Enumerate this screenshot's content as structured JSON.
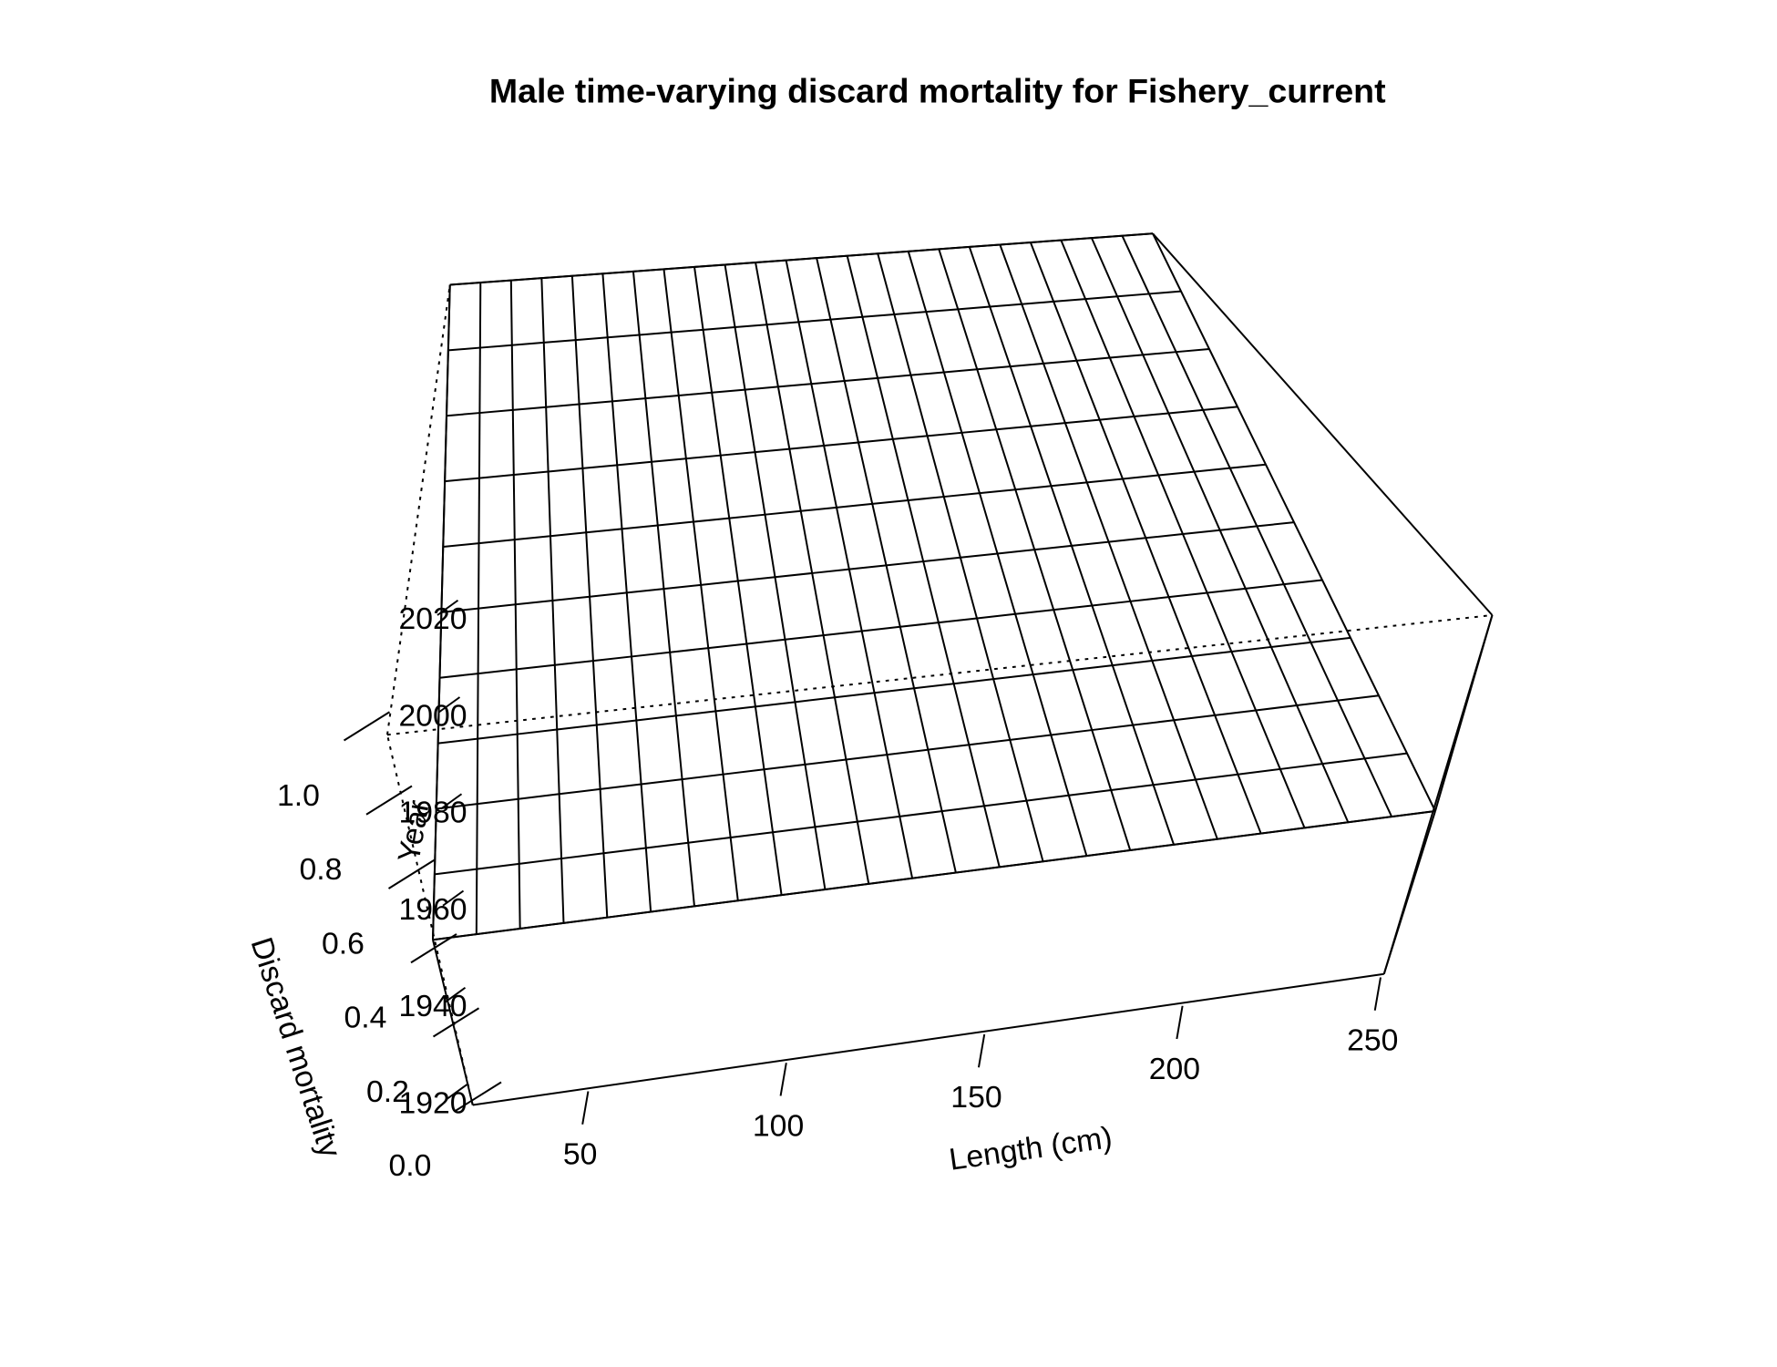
{
  "chart_data": {
    "type": "surface",
    "title": "Male time-varying discard mortality for Fishery_current",
    "xlabel": "Length (cm)",
    "ylabel": "Year",
    "zlabel": "Discard mortality",
    "x": [
      20,
      30,
      40,
      50,
      60,
      70,
      80,
      90,
      100,
      110,
      120,
      130,
      140,
      150,
      160,
      170,
      180,
      190,
      200,
      210,
      220,
      230,
      240,
      250
    ],
    "xlim": [
      20,
      250
    ],
    "xticks": [
      50,
      100,
      150,
      200,
      250
    ],
    "ylim": [
      1920,
      2020
    ],
    "yticks": [
      1920,
      1940,
      1960,
      1980,
      2000,
      2020
    ],
    "zlim": [
      0,
      1
    ],
    "zticks": [
      {
        "value": 0,
        "label": "0.0"
      },
      0.2,
      0.4,
      0.6,
      0.8,
      {
        "value": 1,
        "label": "1.0"
      }
    ],
    "color": "#000000",
    "series": [
      {
        "name": "1920",
        "values": [
          1,
          1,
          1,
          1,
          1,
          1,
          1,
          1,
          1,
          1,
          1,
          1,
          1,
          1,
          1,
          1,
          1,
          1,
          1,
          1,
          1,
          1,
          1,
          1
        ]
      },
      {
        "name": "1930",
        "values": [
          1,
          1,
          1,
          1,
          1,
          1,
          1,
          1,
          1,
          1,
          1,
          1,
          1,
          1,
          1,
          1,
          1,
          1,
          1,
          1,
          1,
          1,
          1,
          1
        ]
      },
      {
        "name": "1940",
        "values": [
          1,
          1,
          1,
          1,
          1,
          1,
          1,
          1,
          1,
          1,
          1,
          1,
          1,
          1,
          1,
          1,
          1,
          1,
          1,
          1,
          1,
          1,
          1,
          1
        ]
      },
      {
        "name": "1950",
        "values": [
          1,
          1,
          1,
          1,
          1,
          1,
          1,
          1,
          1,
          1,
          1,
          1,
          1,
          1,
          1,
          1,
          1,
          1,
          1,
          1,
          1,
          1,
          1,
          1
        ]
      },
      {
        "name": "1960",
        "values": [
          1,
          1,
          1,
          1,
          1,
          1,
          1,
          1,
          1,
          1,
          1,
          1,
          1,
          1,
          1,
          1,
          1,
          1,
          1,
          1,
          1,
          1,
          1,
          1
        ]
      },
      {
        "name": "1970",
        "values": [
          1,
          1,
          1,
          1,
          1,
          1,
          1,
          1,
          1,
          1,
          1,
          1,
          1,
          1,
          1,
          1,
          1,
          1,
          1,
          1,
          1,
          1,
          1,
          1
        ]
      },
      {
        "name": "1980",
        "values": [
          1,
          1,
          1,
          1,
          1,
          1,
          1,
          1,
          1,
          1,
          1,
          1,
          1,
          1,
          1,
          1,
          1,
          1,
          1,
          1,
          1,
          1,
          1,
          1
        ]
      },
      {
        "name": "1990",
        "values": [
          1,
          1,
          1,
          1,
          1,
          1,
          1,
          1,
          1,
          1,
          1,
          1,
          1,
          1,
          1,
          1,
          1,
          1,
          1,
          1,
          1,
          1,
          1,
          1
        ]
      },
      {
        "name": "2000",
        "values": [
          1,
          1,
          1,
          1,
          1,
          1,
          1,
          1,
          1,
          1,
          1,
          1,
          1,
          1,
          1,
          1,
          1,
          1,
          1,
          1,
          1,
          1,
          1,
          1
        ]
      },
      {
        "name": "2010",
        "values": [
          1,
          1,
          1,
          1,
          1,
          1,
          1,
          1,
          1,
          1,
          1,
          1,
          1,
          1,
          1,
          1,
          1,
          1,
          1,
          1,
          1,
          1,
          1,
          1
        ]
      },
      {
        "name": "2020",
        "values": [
          1,
          1,
          1,
          1,
          1,
          1,
          1,
          1,
          1,
          1,
          1,
          1,
          1,
          1,
          1,
          1,
          1,
          1,
          1,
          1,
          1,
          1,
          1,
          1
        ]
      }
    ]
  }
}
